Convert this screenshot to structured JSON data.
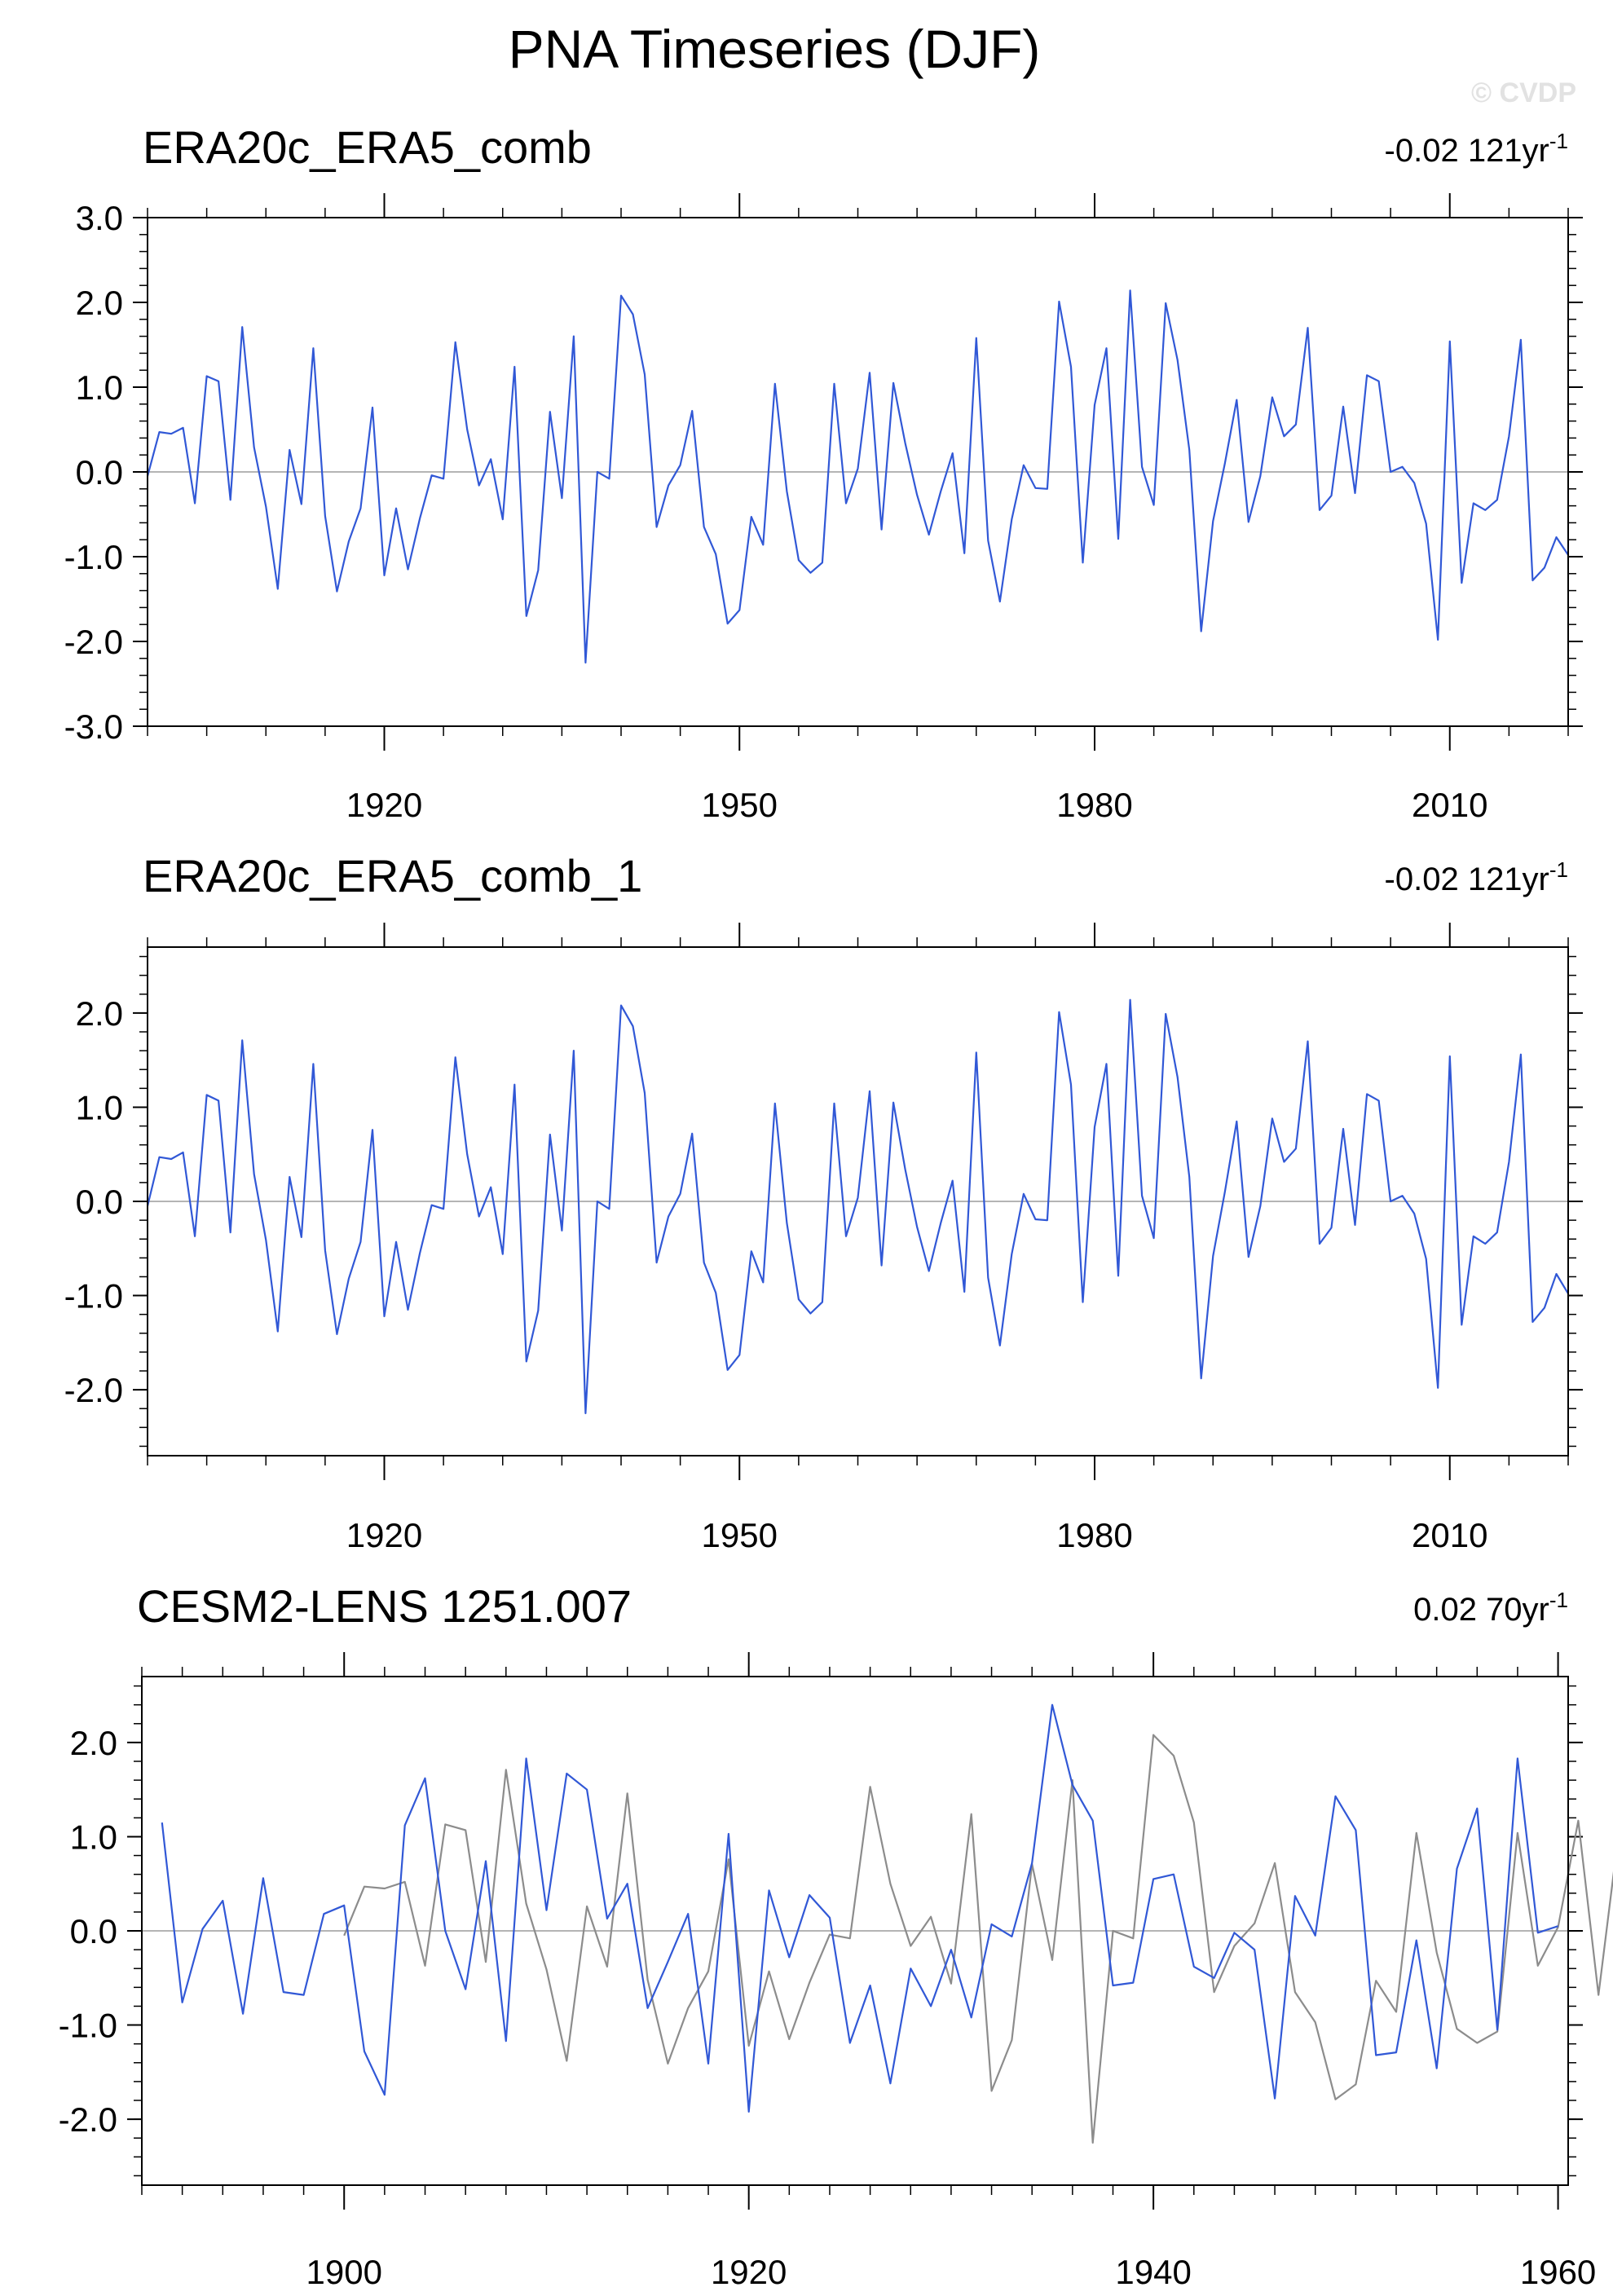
{
  "title": "PNA Timeseries (DJF)",
  "watermark": "© CVDP",
  "colors": {
    "series": "#3158d6",
    "overlay": "#8c8c8c",
    "zero_line": "#b4b4b4",
    "frame": "#000000"
  },
  "chart_data": [
    {
      "type": "line",
      "title": "ERA20c_ERA5_comb",
      "trend": "-0.02 121yr",
      "trend_exponent": "-1",
      "xlim": [
        1900,
        2020
      ],
      "ylim": [
        -3.0,
        3.0
      ],
      "yticks": [
        "3.0",
        "2.0",
        "1.0",
        "0.0",
        "-1.0",
        "-2.0",
        "-3.0"
      ],
      "xticks": [
        "1920",
        "1950",
        "1980",
        "2010"
      ],
      "series": [
        {
          "name": "ERA20c_ERA5_comb",
          "x_start": 1900,
          "values": [
            -0.05,
            0.47,
            0.45,
            0.52,
            -0.37,
            1.13,
            1.07,
            -0.33,
            1.71,
            0.29,
            -0.41,
            -1.38,
            0.26,
            -0.38,
            1.46,
            -0.52,
            -1.41,
            -0.82,
            -0.43,
            0.76,
            -1.22,
            -0.43,
            -1.15,
            -0.55,
            -0.04,
            -0.08,
            1.53,
            0.5,
            -0.16,
            0.15,
            -0.56,
            1.24,
            -1.7,
            -1.16,
            0.71,
            -0.31,
            1.6,
            -2.25,
            0.0,
            -0.08,
            2.08,
            1.86,
            1.15,
            -0.65,
            -0.16,
            0.08,
            0.72,
            -0.65,
            -0.97,
            -1.79,
            -1.63,
            -0.53,
            -0.86,
            1.04,
            -0.23,
            -1.04,
            -1.19,
            -1.07,
            1.04,
            -0.37,
            0.04,
            1.17,
            -0.68,
            1.05,
            0.34,
            -0.27,
            -0.74,
            -0.23,
            0.22,
            -0.96,
            1.58,
            -0.81,
            -1.53,
            -0.56,
            0.08,
            -0.19,
            -0.2,
            2.01,
            1.24,
            -1.07,
            0.79,
            1.46,
            -0.79,
            2.14,
            0.06,
            -0.39,
            1.99,
            1.32,
            0.26,
            -1.88,
            -0.58,
            0.1,
            0.85,
            -0.59,
            -0.05,
            0.88,
            0.42,
            0.56,
            1.7,
            -0.45,
            -0.28,
            0.77,
            -0.25,
            1.14,
            1.07,
            0.0,
            0.06,
            -0.13,
            -0.61,
            -1.98,
            1.54,
            -1.31,
            -0.37,
            -0.45,
            -0.33,
            0.42,
            1.56,
            -1.28,
            -1.13,
            -0.77,
            -0.98
          ]
        }
      ]
    },
    {
      "type": "line",
      "title": "ERA20c_ERA5_comb_1",
      "trend": "-0.02 121yr",
      "trend_exponent": "-1",
      "xlim": [
        1900,
        2020
      ],
      "ylim": [
        -2.7,
        2.7
      ],
      "yticks": [
        "2.0",
        "1.0",
        "0.0",
        "-1.0",
        "-2.0"
      ],
      "xticks": [
        "1920",
        "1950",
        "1980",
        "2010"
      ],
      "series": [
        {
          "name": "ERA20c_ERA5_comb_1",
          "x_start": 1900,
          "values": [
            -0.05,
            0.47,
            0.45,
            0.52,
            -0.37,
            1.13,
            1.07,
            -0.33,
            1.71,
            0.29,
            -0.41,
            -1.38,
            0.26,
            -0.38,
            1.46,
            -0.52,
            -1.41,
            -0.82,
            -0.43,
            0.76,
            -1.22,
            -0.43,
            -1.15,
            -0.55,
            -0.04,
            -0.08,
            1.53,
            0.5,
            -0.16,
            0.15,
            -0.56,
            1.24,
            -1.7,
            -1.16,
            0.71,
            -0.31,
            1.6,
            -2.25,
            0.0,
            -0.08,
            2.08,
            1.86,
            1.15,
            -0.65,
            -0.16,
            0.08,
            0.72,
            -0.65,
            -0.97,
            -1.79,
            -1.63,
            -0.53,
            -0.86,
            1.04,
            -0.23,
            -1.04,
            -1.19,
            -1.07,
            1.04,
            -0.37,
            0.04,
            1.17,
            -0.68,
            1.05,
            0.34,
            -0.27,
            -0.74,
            -0.23,
            0.22,
            -0.96,
            1.58,
            -0.81,
            -1.53,
            -0.56,
            0.08,
            -0.19,
            -0.2,
            2.01,
            1.24,
            -1.07,
            0.79,
            1.46,
            -0.79,
            2.14,
            0.06,
            -0.39,
            1.99,
            1.32,
            0.26,
            -1.88,
            -0.58,
            0.1,
            0.85,
            -0.59,
            -0.05,
            0.88,
            0.42,
            0.56,
            1.7,
            -0.45,
            -0.28,
            0.77,
            -0.25,
            1.14,
            1.07,
            0.0,
            0.06,
            -0.13,
            -0.61,
            -1.98,
            1.54,
            -1.31,
            -0.37,
            -0.45,
            -0.33,
            0.42,
            1.56,
            -1.28,
            -1.13,
            -0.77,
            -0.98
          ]
        }
      ]
    },
    {
      "type": "line",
      "title": "CESM2-LENS 1251.007",
      "trend": "0.02 70yr",
      "trend_exponent": "-1",
      "xlim": [
        1890,
        1960.5
      ],
      "ylim": [
        -2.7,
        2.7
      ],
      "yticks": [
        "2.0",
        "1.0",
        "0.0",
        "-1.0",
        "-2.0"
      ],
      "xticks": [
        "1900",
        "1920",
        "1940",
        "1960"
      ],
      "series": [
        {
          "name": "CESM2-LENS 1251.007",
          "x_start": 1891,
          "values": [
            1.15,
            -0.76,
            0.02,
            0.32,
            -0.88,
            0.56,
            -0.65,
            -0.68,
            0.18,
            0.27,
            -1.28,
            -1.74,
            1.12,
            1.62,
            0.0,
            -0.62,
            0.74,
            -1.17,
            1.83,
            0.22,
            1.67,
            1.5,
            0.13,
            0.5,
            -0.82,
            -0.33,
            0.18,
            -1.41,
            1.03,
            -1.92,
            0.43,
            -0.28,
            0.38,
            0.14,
            -1.19,
            -0.58,
            -1.62,
            -0.4,
            -0.8,
            -0.2,
            -0.92,
            0.07,
            -0.06,
            0.72,
            2.4,
            1.55,
            1.17,
            -0.58,
            -0.55,
            0.55,
            0.6,
            -0.38,
            -0.5,
            -0.02,
            -0.2,
            -1.78,
            0.37,
            -0.05,
            1.43,
            1.07,
            -1.32,
            -1.29,
            -0.1,
            -1.46,
            0.66,
            1.3,
            -1.05,
            1.83,
            -0.02,
            0.05
          ]
        },
        {
          "name": "observations",
          "x_start": 1900,
          "values": [
            -0.05,
            0.47,
            0.45,
            0.52,
            -0.37,
            1.13,
            1.07,
            -0.33,
            1.71,
            0.29,
            -0.41,
            -1.38,
            0.26,
            -0.38,
            1.46,
            -0.52,
            -1.41,
            -0.82,
            -0.43,
            0.76,
            -1.22,
            -0.43,
            -1.15,
            -0.55,
            -0.04,
            -0.08,
            1.53,
            0.5,
            -0.16,
            0.15,
            -0.56,
            1.24,
            -1.7,
            -1.16,
            0.71,
            -0.31,
            1.6,
            -2.25,
            0.0,
            -0.08,
            2.08,
            1.86,
            1.15,
            -0.65,
            -0.16,
            0.08,
            0.72,
            -0.65,
            -0.97,
            -1.79,
            -1.63,
            -0.53,
            -0.86,
            1.04,
            -0.23,
            -1.04,
            -1.19,
            -1.07,
            1.04,
            -0.37,
            0.04,
            1.17,
            -0.68,
            1.05,
            0.34,
            -0.27,
            -0.74,
            -0.23,
            0.22,
            -0.96,
            1.58
          ]
        }
      ]
    }
  ]
}
